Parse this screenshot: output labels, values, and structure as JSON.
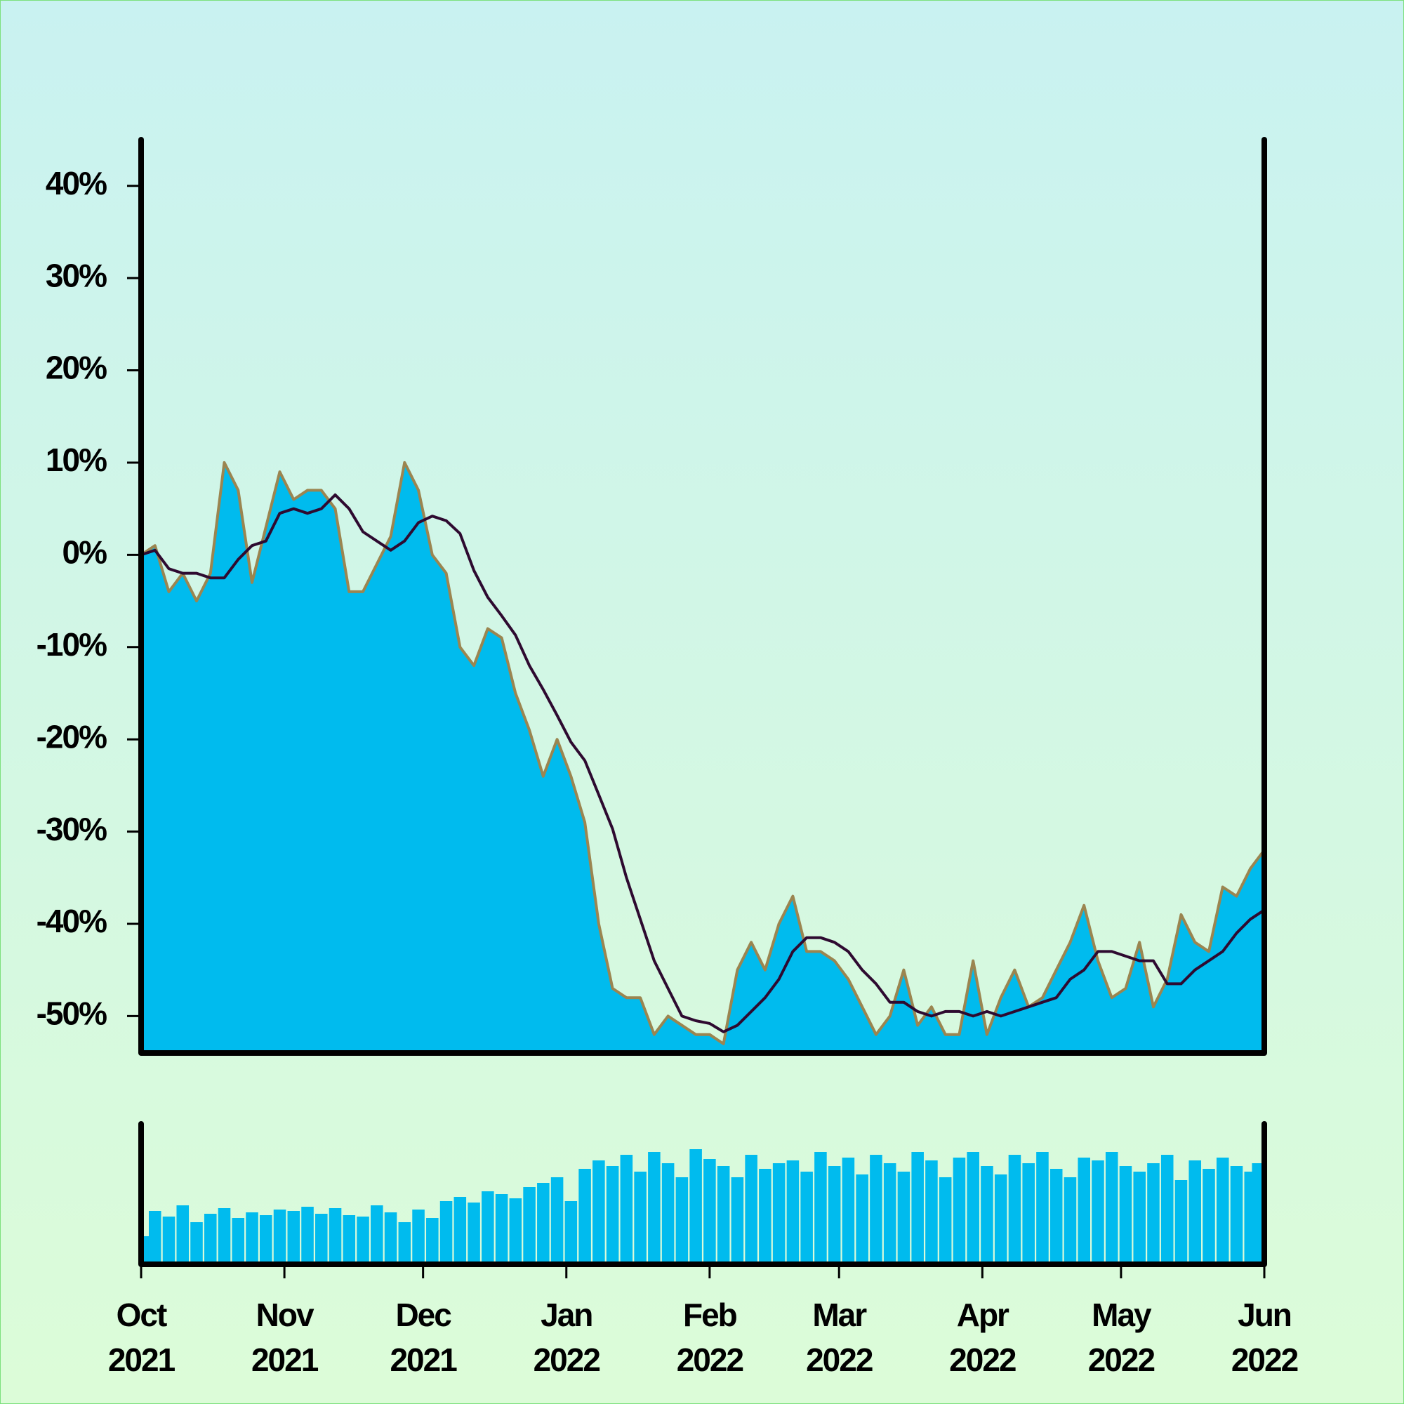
{
  "chart_data": [
    {
      "type": "line",
      "x": [
        0,
        3,
        6,
        9,
        12,
        15,
        18,
        21,
        24,
        27,
        30,
        33,
        36,
        39,
        42,
        45,
        48,
        51,
        54,
        57,
        60,
        63,
        66,
        69,
        72,
        75,
        78,
        81,
        84,
        87,
        90,
        93,
        96,
        99,
        102,
        105,
        108,
        111,
        114,
        117,
        120,
        123,
        126,
        129,
        132,
        135,
        138,
        141,
        144,
        147,
        150,
        153,
        156,
        159,
        162,
        165,
        168,
        171,
        174,
        177,
        180,
        183,
        186,
        189,
        192,
        195,
        198,
        201,
        204,
        207,
        210,
        213,
        216,
        219,
        222,
        225,
        228,
        231,
        234,
        237,
        240,
        243
      ],
      "series": [
        {
          "color": "#9b8550",
          "fill": "#00bbee",
          "values": [
            0,
            1,
            -4,
            -2,
            -5,
            -2,
            10,
            7,
            -3,
            3,
            9,
            6,
            7,
            7,
            5,
            -4,
            -4,
            -1,
            2,
            10,
            7,
            0,
            -2,
            -10,
            -12,
            -8,
            -9,
            -15,
            -19,
            -24,
            -20,
            -24,
            -29,
            -40,
            -47,
            -48,
            -48,
            -52,
            -50,
            -51,
            -52,
            -52,
            -53,
            -45,
            -42,
            -45,
            -40,
            -37,
            -43,
            -43,
            -44,
            -46,
            -49,
            -52,
            -50,
            -45,
            -51,
            -49,
            -52,
            -52,
            -44,
            -52,
            -48,
            -45,
            -49,
            -48,
            -45,
            -42,
            -38,
            -44,
            -48,
            -47,
            -42,
            -49,
            -46,
            -39,
            -42,
            -43,
            -36,
            -37,
            -34,
            -32
          ]
        },
        {
          "color": "#2e0a30",
          "values": [
            0,
            0.5,
            -1.5,
            -2,
            -2,
            -2.5,
            -2.5,
            -0.5,
            1,
            1.5,
            4.5,
            5,
            4.5,
            5,
            6.5,
            5,
            2.5,
            1.5,
            0.5,
            1.5,
            3.5,
            4.2,
            3.7,
            2.3,
            -1.7,
            -4.6,
            -6.6,
            -8.7,
            -12,
            -14.6,
            -17.4,
            -20.3,
            -22.3,
            -26,
            -29.7,
            -35,
            -39.5,
            -44,
            -47,
            -50,
            -50.5,
            -50.8,
            -51.7,
            -51,
            -49.5,
            -48,
            -46,
            -43,
            -41.5,
            -41.5,
            -42,
            -43,
            -45,
            -46.5,
            -48.5,
            -48.5,
            -49.5,
            -50,
            -49.5,
            -49.5,
            -50,
            -49.5,
            -50,
            -49.5,
            -49,
            -48.5,
            -48,
            -46,
            -45,
            -43,
            -43,
            -43.5,
            -44,
            -44,
            -46.5,
            -46.5,
            -45,
            -44,
            -43,
            -41,
            -39.5,
            -38.5
          ]
        }
      ],
      "xlim": [
        0,
        243
      ],
      "ylim": [
        -54,
        45
      ],
      "yticks": [
        {
          "value": -50,
          "label": "-50%"
        },
        {
          "value": -40,
          "label": "-40%"
        },
        {
          "value": -30,
          "label": "-30%"
        },
        {
          "value": -20,
          "label": "-20%"
        },
        {
          "value": -10,
          "label": "-10%"
        },
        {
          "value": 0,
          "label": "0%"
        },
        {
          "value": 10,
          "label": "10%"
        },
        {
          "value": 20,
          "label": "20%"
        },
        {
          "value": 30,
          "label": "30%"
        },
        {
          "value": 40,
          "label": "40%"
        }
      ]
    },
    {
      "type": "bar",
      "x": [
        0,
        3,
        6,
        9,
        12,
        15,
        18,
        21,
        24,
        27,
        30,
        33,
        36,
        39,
        42,
        45,
        48,
        51,
        54,
        57,
        60,
        63,
        66,
        69,
        72,
        75,
        78,
        81,
        84,
        87,
        90,
        93,
        96,
        99,
        102,
        105,
        108,
        111,
        114,
        117,
        120,
        123,
        126,
        129,
        132,
        135,
        138,
        141,
        144,
        147,
        150,
        153,
        156,
        159,
        162,
        165,
        168,
        171,
        174,
        177,
        180,
        183,
        186,
        189,
        192,
        195,
        198,
        201,
        204,
        207,
        210,
        213,
        216,
        219,
        222,
        225,
        228,
        231,
        234,
        237,
        240,
        243
      ],
      "values": [
        20,
        38,
        34,
        42,
        30,
        36,
        40,
        33,
        37,
        35,
        39,
        38,
        41,
        36,
        40,
        35,
        34,
        42,
        37,
        30,
        39,
        33,
        45,
        48,
        44,
        52,
        50,
        47,
        55,
        58,
        62,
        45,
        68,
        74,
        70,
        78,
        66,
        80,
        72,
        62,
        82,
        75,
        70,
        62,
        78,
        68,
        72,
        74,
        66,
        80,
        70,
        76,
        64,
        78,
        72,
        66,
        80,
        74,
        62,
        76,
        80,
        70,
        64,
        78,
        72,
        80,
        68,
        62,
        76,
        74,
        80,
        70,
        66,
        72,
        78,
        60,
        74,
        68,
        76,
        70,
        66,
        72
      ],
      "color": "#00bbee",
      "xlim": [
        0,
        243
      ],
      "ylim": [
        0,
        100
      ],
      "xticks": [
        {
          "value": 0,
          "label": "Oct 2021"
        },
        {
          "value": 31,
          "label": "Nov 2021"
        },
        {
          "value": 61,
          "label": "Dec 2021"
        },
        {
          "value": 92,
          "label": "Jan 2022"
        },
        {
          "value": 123,
          "label": "Feb 2022"
        },
        {
          "value": 151,
          "label": "Mar 2022"
        },
        {
          "value": 182,
          "label": "Apr 2022"
        },
        {
          "value": 212,
          "label": "May 2022"
        },
        {
          "value": 243,
          "label": "Jun 2022"
        }
      ]
    }
  ]
}
